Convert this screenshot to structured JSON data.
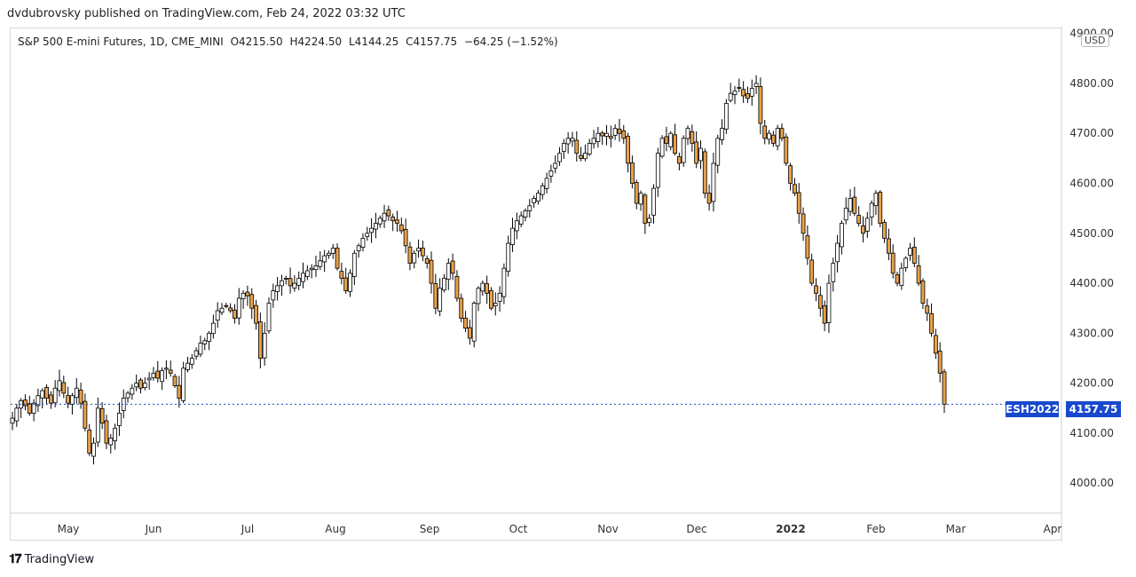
{
  "header": {
    "publisher_line": "dvdubrovsky published on TradingView.com, Feb 24, 2022 03:32 UTC"
  },
  "legend": {
    "symbol": "S&P 500 E-mini Futures, 1D, CME_MINI",
    "open": "O4215.50",
    "high": "H4224.50",
    "low": "L4144.25",
    "close": "C4157.75",
    "change": "−64.25 (−1.52%)"
  },
  "currency": "USD",
  "price_tag": {
    "ticker": "ESH2022",
    "price": "4157.75"
  },
  "footer": {
    "brand": "TradingView",
    "logo": "tv-logo-icon"
  },
  "colors": {
    "up_fill": "#ffffff",
    "down_fill": "#e8a14a",
    "wick": "#000000",
    "tag": "#1848cc",
    "dotted_line": "#1848cc"
  },
  "chart_data": {
    "type": "candlestick",
    "title": "S&P 500 E-mini Futures, 1D, CME_MINI",
    "ylim": [
      3940,
      4910
    ],
    "y_ticks": [
      "4000.00",
      "4100.00",
      "4200.00",
      "4300.00",
      "4400.00",
      "4500.00",
      "4600.00",
      "4700.00",
      "4800.00",
      "4900.00"
    ],
    "x_ticks": [
      "May",
      "Jun",
      "Jul",
      "Aug",
      "Sep",
      "Oct",
      "Nov",
      "Dec",
      "2022",
      "Feb",
      "Mar",
      "Apr"
    ],
    "last_price": 4157.75,
    "closes": [
      4130,
      4150,
      4165,
      4155,
      4140,
      4160,
      4175,
      4185,
      4170,
      4160,
      4190,
      4205,
      4180,
      4160,
      4175,
      4190,
      4160,
      4110,
      4060,
      4080,
      4150,
      4120,
      4080,
      4090,
      4110,
      4140,
      4170,
      4180,
      4190,
      4200,
      4190,
      4200,
      4210,
      4220,
      4210,
      4225,
      4230,
      4220,
      4195,
      4170,
      4230,
      4240,
      4250,
      4265,
      4280,
      4285,
      4300,
      4320,
      4345,
      4350,
      4355,
      4345,
      4330,
      4370,
      4380,
      4375,
      4350,
      4320,
      4250,
      4300,
      4360,
      4385,
      4395,
      4405,
      4410,
      4395,
      4400,
      4410,
      4420,
      4425,
      4430,
      4435,
      4445,
      4455,
      4460,
      4470,
      4430,
      4410,
      4385,
      4420,
      4460,
      4475,
      4490,
      4500,
      4510,
      4520,
      4530,
      4540,
      4535,
      4525,
      4520,
      4505,
      4475,
      4440,
      4460,
      4470,
      4455,
      4440,
      4400,
      4350,
      4390,
      4410,
      4440,
      4420,
      4370,
      4330,
      4310,
      4290,
      4360,
      4390,
      4400,
      4380,
      4350,
      4360,
      4380,
      4430,
      4480,
      4510,
      4525,
      4535,
      4545,
      4555,
      4570,
      4580,
      4595,
      4610,
      4625,
      4640,
      4660,
      4680,
      4690,
      4690,
      4660,
      4650,
      4660,
      4680,
      4690,
      4700,
      4695,
      4700,
      4690,
      4710,
      4700,
      4690,
      4640,
      4600,
      4560,
      4580,
      4520,
      4530,
      4590,
      4660,
      4690,
      4680,
      4700,
      4660,
      4640,
      4690,
      4710,
      4680,
      4640,
      4670,
      4580,
      4560,
      4640,
      4690,
      4710,
      4760,
      4780,
      4785,
      4790,
      4775,
      4770,
      4790,
      4800,
      4720,
      4690,
      4700,
      4680,
      4710,
      4690,
      4640,
      4600,
      4580,
      4540,
      4500,
      4450,
      4400,
      4380,
      4350,
      4320,
      4400,
      4440,
      4480,
      4520,
      4550,
      4570,
      4540,
      4520,
      4500,
      4530,
      4560,
      4580,
      4520,
      4490,
      4460,
      4420,
      4400,
      4430,
      4450,
      4470,
      4440,
      4400,
      4360,
      4340,
      4300,
      4260,
      4220,
      4157.75
    ]
  }
}
